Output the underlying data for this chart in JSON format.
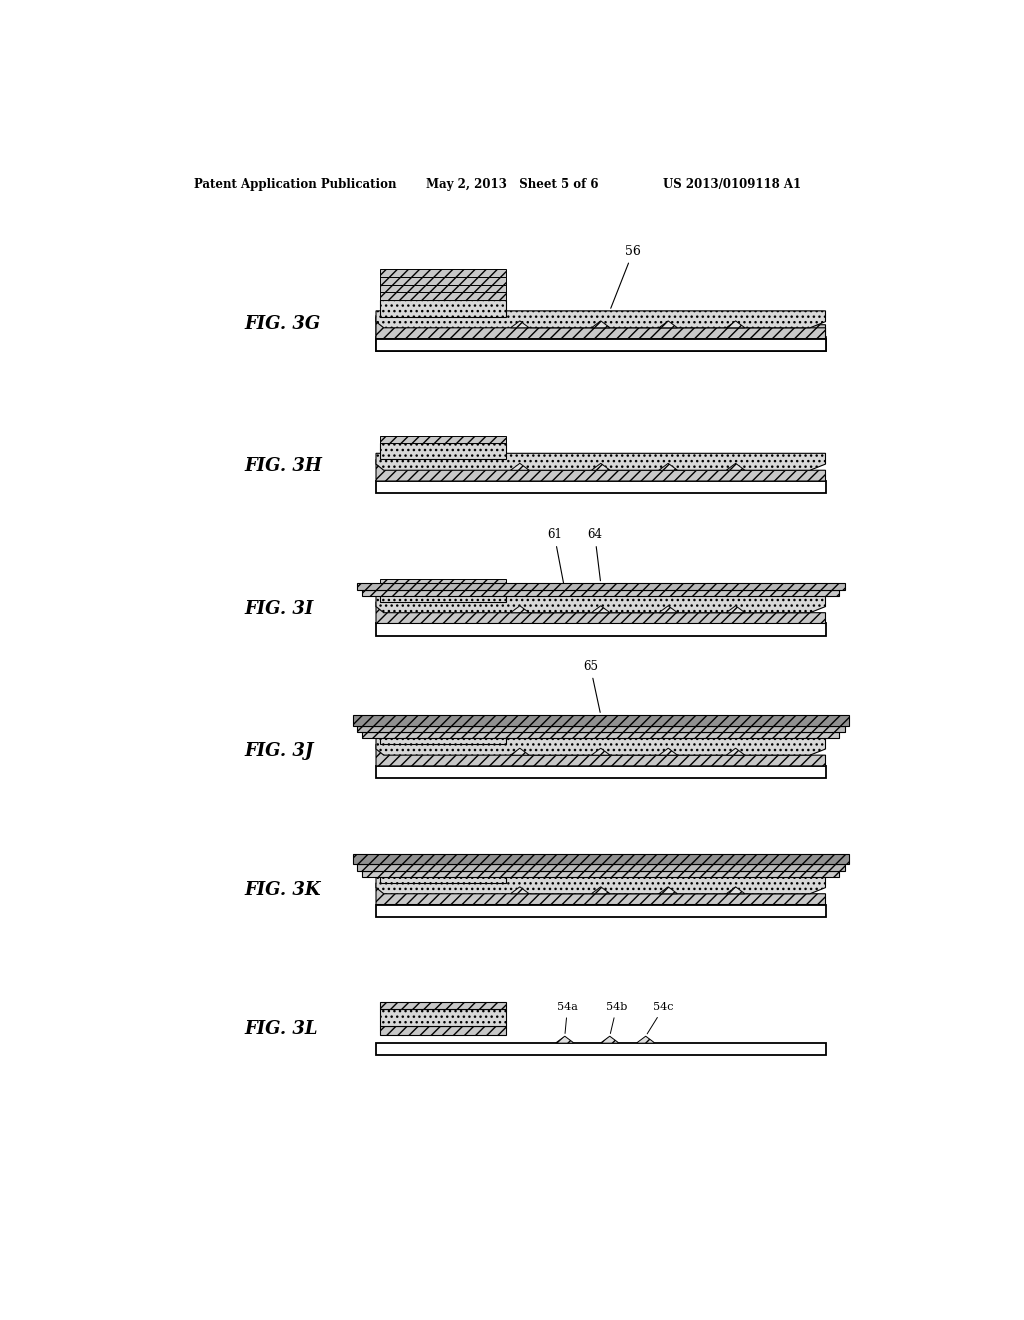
{
  "title_left": "Patent Application Publication",
  "title_mid": "May 2, 2013   Sheet 5 of 6",
  "title_right": "US 2013/0109118 A1",
  "bg_color": "#ffffff",
  "line_color": "#000000",
  "panels": [
    {
      "label": "FIG. 3G",
      "y": 10.7
    },
    {
      "label": "FIG. 3H",
      "y": 8.85
    },
    {
      "label": "FIG. 3I",
      "y": 7.0
    },
    {
      "label": "FIG. 3J",
      "y": 5.15
    },
    {
      "label": "FIG. 3K",
      "y": 3.35
    },
    {
      "label": "FIG. 3L",
      "y": 1.55
    }
  ]
}
